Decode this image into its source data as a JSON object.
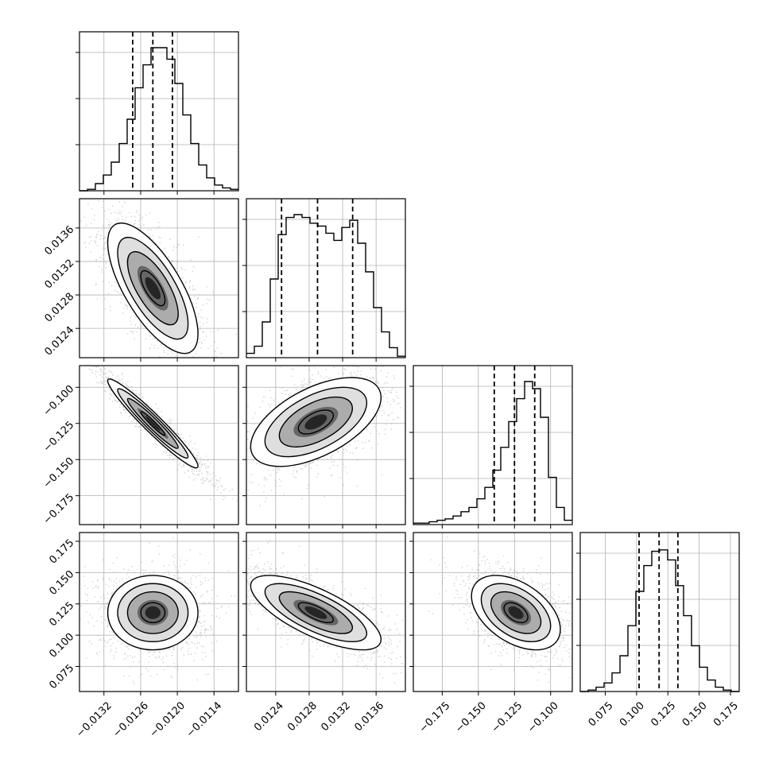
{
  "chart_data": {
    "type": "corner",
    "parameters": [
      {
        "range": [
          -0.0136,
          -0.011
        ],
        "ticks": [
          -0.0132,
          -0.0126,
          -0.012,
          -0.0114
        ],
        "tick_labels": [
          "−0.0132",
          "−0.0126",
          "−0.0120",
          "−0.0114"
        ],
        "quantiles": [
          -0.01273,
          -0.0124,
          -0.01208
        ]
      },
      {
        "range": [
          0.01205,
          0.01395
        ],
        "ticks": [
          0.0124,
          0.0128,
          0.0132,
          0.0136
        ],
        "tick_labels": [
          "0.0124",
          "0.0128",
          "0.0132",
          "0.0136"
        ],
        "quantiles": [
          0.01247,
          0.0129,
          0.01332
        ]
      },
      {
        "range": [
          -0.195,
          -0.085
        ],
        "ticks": [
          -0.175,
          -0.15,
          -0.125,
          -0.1
        ],
        "tick_labels": [
          "−0.175",
          "−0.150",
          "−0.125",
          "−0.100"
        ],
        "quantiles": [
          -0.139,
          -0.125,
          -0.111
        ]
      },
      {
        "range": [
          0.055,
          0.182
        ],
        "ticks": [
          0.075,
          0.1,
          0.125,
          0.15,
          0.175
        ],
        "tick_labels": [
          "0.075",
          "0.100",
          "0.125",
          "0.150",
          "0.175"
        ],
        "quantiles": [
          0.102,
          0.118,
          0.133
        ]
      }
    ],
    "histograms": [
      [
        0.0,
        0.01,
        0.05,
        0.11,
        0.2,
        0.33,
        0.5,
        0.72,
        0.88,
        1.0,
        1.0,
        0.92,
        0.75,
        0.53,
        0.33,
        0.18,
        0.09,
        0.04,
        0.02,
        0.01
      ],
      [
        0.03,
        0.08,
        0.25,
        0.55,
        0.86,
        0.98,
        1.0,
        0.98,
        0.94,
        0.92,
        0.87,
        0.82,
        0.91,
        0.96,
        0.8,
        0.6,
        0.35,
        0.18,
        0.07,
        0.01
      ],
      [
        0.01,
        0.01,
        0.02,
        0.03,
        0.04,
        0.06,
        0.09,
        0.12,
        0.18,
        0.26,
        0.38,
        0.54,
        0.72,
        0.88,
        1.0,
        0.95,
        0.75,
        0.33,
        0.12,
        0.03
      ],
      [
        0.0,
        0.01,
        0.03,
        0.06,
        0.13,
        0.25,
        0.46,
        0.7,
        0.88,
        0.98,
        0.99,
        0.92,
        0.74,
        0.53,
        0.32,
        0.17,
        0.08,
        0.03,
        0.01,
        0.0
      ]
    ],
    "pairs": [
      {
        "row": 1,
        "col": 0,
        "mean": [
          -0.0124,
          0.01288
        ],
        "sd": [
          0.00036,
          0.00038
        ],
        "rho": -0.7
      },
      {
        "row": 2,
        "col": 0,
        "mean": [
          -0.0124,
          -0.125
        ],
        "sd": [
          0.00036,
          0.015
        ],
        "rho": -0.96
      },
      {
        "row": 2,
        "col": 1,
        "mean": [
          0.01288,
          -0.124
        ],
        "sd": [
          0.00038,
          0.015
        ],
        "rho": 0.55
      },
      {
        "row": 3,
        "col": 0,
        "mean": [
          -0.0124,
          0.118
        ],
        "sd": [
          0.00036,
          0.0145
        ],
        "rho": 0.0
      },
      {
        "row": 3,
        "col": 1,
        "mean": [
          0.01288,
          0.118
        ],
        "sd": [
          0.00038,
          0.0145
        ],
        "rho": -0.72
      },
      {
        "row": 3,
        "col": 2,
        "mean": [
          -0.124,
          0.118
        ],
        "sd": [
          0.015,
          0.0145
        ],
        "rho": -0.45
      }
    ],
    "grid": true,
    "colors": {
      "points": "#9c9c9c",
      "contour": "#000000",
      "grid": "#b0b0b0",
      "density_max": "#000000"
    }
  }
}
